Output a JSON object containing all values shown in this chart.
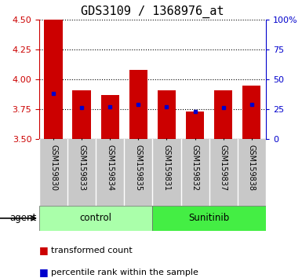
{
  "title": "GDS3109 / 1368976_at",
  "samples": [
    "GSM159830",
    "GSM159833",
    "GSM159834",
    "GSM159835",
    "GSM159831",
    "GSM159832",
    "GSM159837",
    "GSM159838"
  ],
  "red_values": [
    4.5,
    3.91,
    3.87,
    4.08,
    3.91,
    3.73,
    3.91,
    3.95
  ],
  "blue_values": [
    3.88,
    3.76,
    3.77,
    3.79,
    3.77,
    3.73,
    3.76,
    3.79
  ],
  "y_min": 3.5,
  "y_max": 4.5,
  "y_ticks": [
    3.5,
    3.75,
    4.0,
    4.25,
    4.5
  ],
  "right_y_ticks": [
    0,
    25,
    50,
    75,
    100
  ],
  "right_y_labels": [
    "0",
    "25",
    "50",
    "75",
    "100%"
  ],
  "groups": [
    {
      "label": "control",
      "indices": [
        0,
        1,
        2,
        3
      ],
      "color": "#aaffaa"
    },
    {
      "label": "Sunitinib",
      "indices": [
        4,
        5,
        6,
        7
      ],
      "color": "#44ee44"
    }
  ],
  "group_label": "agent",
  "bar_color": "#cc0000",
  "blue_color": "#0000cc",
  "bar_bottom": 3.5,
  "bar_width": 0.65,
  "label_area_bg": "#c8c8c8",
  "title_fontsize": 11,
  "tick_fontsize": 8,
  "label_fontsize": 7,
  "legend_fontsize": 8
}
